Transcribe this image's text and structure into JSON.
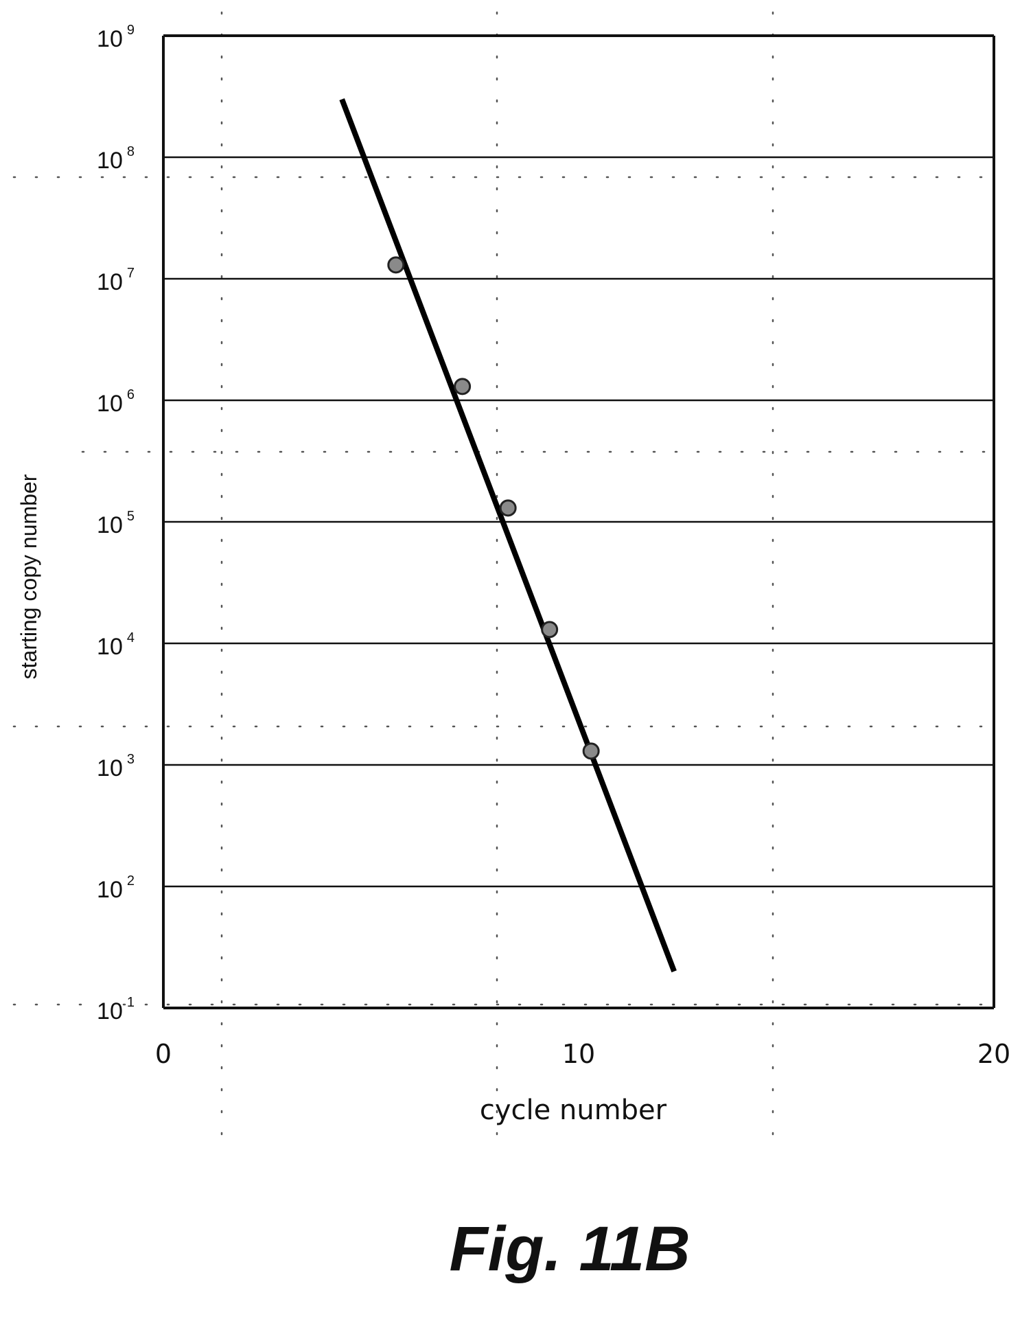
{
  "figure": {
    "caption": "Fig. 11B"
  },
  "chart_data": {
    "type": "scatter",
    "xlabel": "cycle number",
    "ylabel": "starting copy number",
    "xlim": [
      0,
      20
    ],
    "ylim_log10": [
      1,
      9
    ],
    "y_scale": "log",
    "x_ticks": [
      "0",
      "10",
      "20"
    ],
    "x_tick_values": [
      0,
      10,
      20
    ],
    "y_tick_exponents": [
      1,
      2,
      3,
      4,
      5,
      6,
      7,
      8,
      9
    ],
    "y_tick_exponent_labels": [
      "1",
      "2",
      "3",
      "4",
      "5",
      "6",
      "7",
      "8",
      "9"
    ],
    "y_tick_base": "10",
    "grid": {
      "horizontal": "solid",
      "vertical": "dotted"
    },
    "series": [
      {
        "points": [
          {
            "x": 5.6,
            "y": 13000000
          },
          {
            "x": 7.2,
            "y": 1300000
          },
          {
            "x": 8.3,
            "y": 130000
          },
          {
            "x": 9.3,
            "y": 13000
          },
          {
            "x": 10.3,
            "y": 1300
          }
        ],
        "marker_color": "#8a8a8a"
      }
    ],
    "fit_line": {
      "x": [
        4.3,
        12.3
      ],
      "y": [
        300000000,
        20
      ],
      "color": "#000000"
    }
  }
}
